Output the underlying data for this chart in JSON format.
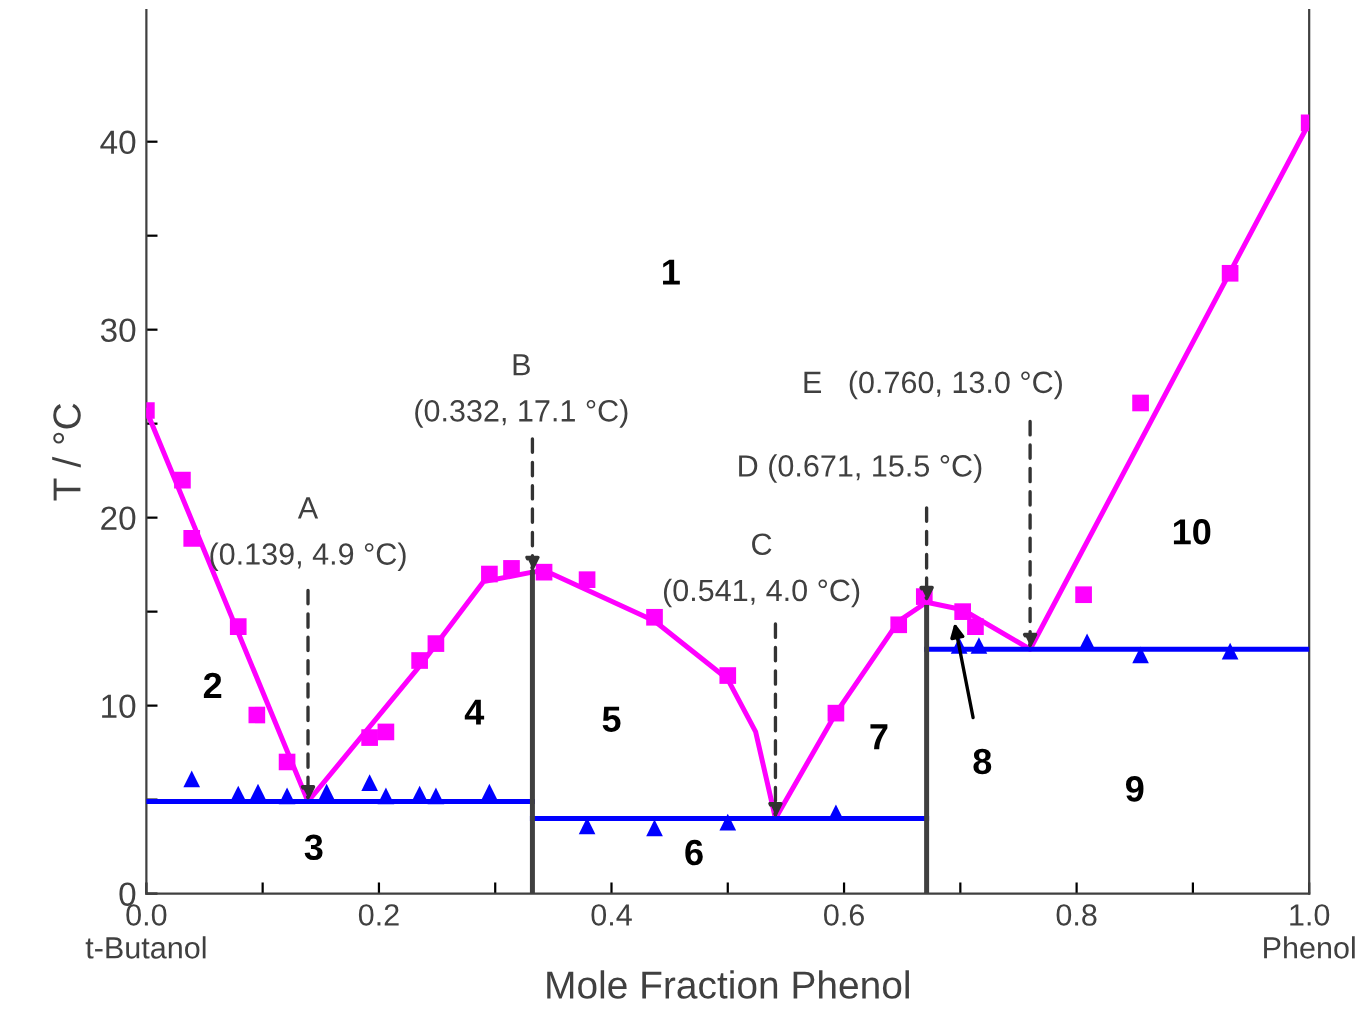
{
  "chart_data": {
    "type": "scatter",
    "xlabel": "Mole Fraction Phenol",
    "ylabel": "T / °C",
    "xlim": [
      0,
      1
    ],
    "ylim": [
      0,
      47
    ],
    "xticks": [
      {
        "value": 0,
        "label": "0.0\nt-Butanol"
      },
      {
        "value": 0.1,
        "label": null
      },
      {
        "value": 0.2,
        "label": "0.2"
      },
      {
        "value": 0.3,
        "label": null
      },
      {
        "value": 0.4,
        "label": "0.4"
      },
      {
        "value": 0.5,
        "label": null
      },
      {
        "value": 0.6,
        "label": "0.6"
      },
      {
        "value": 0.7,
        "label": null
      },
      {
        "value": 0.8,
        "label": "0.8"
      },
      {
        "value": 0.9,
        "label": null
      },
      {
        "value": 1,
        "label": "1.0\nPhenol"
      }
    ],
    "yticks": [
      0,
      {
        "value": 5,
        "label": null
      },
      10,
      {
        "value": 15,
        "label": null
      },
      20,
      {
        "value": 25,
        "label": null
      },
      30,
      {
        "value": 35,
        "label": null
      },
      40
    ],
    "grid": false,
    "legend": false,
    "series": [
      {
        "marker": "square",
        "color": "#ff00ff",
        "x": [
          0,
          0.031,
          0.039,
          0.079,
          0.095,
          0.121,
          0.192,
          0.206,
          0.235,
          0.249,
          0.295,
          0.314,
          0.342,
          0.379,
          0.437,
          0.5,
          0.593,
          0.647,
          0.669,
          0.702,
          0.713,
          0.806,
          0.855,
          0.932,
          1.0
        ],
        "values": [
          25.7,
          22.0,
          18.9,
          14.2,
          9.5,
          7.0,
          8.3,
          8.6,
          12.4,
          13.3,
          17.0,
          17.3,
          17.1,
          16.7,
          14.7,
          11.6,
          9.6,
          14.3,
          15.8,
          15.0,
          14.2,
          15.9,
          26.1,
          33.0,
          41.0
        ]
      },
      {
        "type": "line",
        "marker": "none",
        "color": "#ff00ff",
        "x": [
          0,
          0.139,
          0.235,
          0.29,
          0.332,
          0.342,
          0.437,
          0.5,
          0.524,
          0.541,
          0.593,
          0.647,
          0.671,
          0.702,
          0.76,
          1.0
        ],
        "values": [
          25.7,
          4.9,
          12.1,
          16.6,
          17.1,
          17.2,
          14.5,
          11.4,
          8.6,
          4.0,
          9.6,
          14.5,
          15.5,
          15.1,
          13.0,
          41.0
        ]
      },
      {
        "type": "scatter",
        "marker": "triangle",
        "color": "#0000ff",
        "x": [
          0.039,
          0.079,
          0.096,
          0.121,
          0.155,
          0.192,
          0.206,
          0.235,
          0.249,
          0.295,
          0.379,
          0.437,
          0.5,
          0.593,
          0.699,
          0.716,
          0.809,
          0.855,
          0.932
        ],
        "values": [
          6.1,
          5.3,
          5.4,
          5.2,
          5.4,
          5.9,
          5.2,
          5.3,
          5.2,
          5.4,
          3.6,
          3.5,
          3.8,
          4.3,
          13.2,
          13.2,
          13.4,
          12.7,
          12.9
        ]
      },
      {
        "type": "line",
        "marker": "none",
        "color": "#0000ff",
        "x": [
          0,
          0.332
        ],
        "values": [
          4.9,
          4.9
        ]
      },
      {
        "type": "line",
        "marker": "none",
        "color": "#0000ff",
        "x": [
          0.332,
          0.671
        ],
        "values": [
          4.0,
          4.0
        ]
      },
      {
        "type": "line",
        "marker": "none",
        "color": "#0000ff",
        "x": [
          0.671,
          1.0
        ],
        "values": [
          13.0,
          13.0
        ]
      },
      {
        "type": "line",
        "marker": "none",
        "color": "#404040",
        "x": [
          0.332,
          0.332
        ],
        "values": [
          0,
          17.1
        ]
      },
      {
        "type": "line",
        "marker": "none",
        "color": "#404040",
        "x": [
          0.671,
          0.671
        ],
        "values": [
          0,
          15.5
        ]
      }
    ],
    "annotations": [
      {
        "text": "A\n(0.139, 4.9 °C)",
        "x": 0.139,
        "y": 4.9
      },
      {
        "text": "B\n(0.332, 17.1 °C)",
        "x": 0.332,
        "y": 17.1
      },
      {
        "text": "C\n(0.541, 4.0 °C)",
        "x": 0.541,
        "y": 4.0
      },
      {
        "text": "D (0.671, 15.5 °C)",
        "x": 0.671,
        "y": 15.5
      },
      {
        "text": "E   (0.760, 13.0 °C)",
        "x": 0.76,
        "y": 13.0
      },
      "1",
      "2",
      "3",
      "4",
      "5",
      "6",
      "7",
      {
        "text": "8",
        "x": 0.695,
        "y": 14.4
      },
      "9",
      "10"
    ]
  }
}
